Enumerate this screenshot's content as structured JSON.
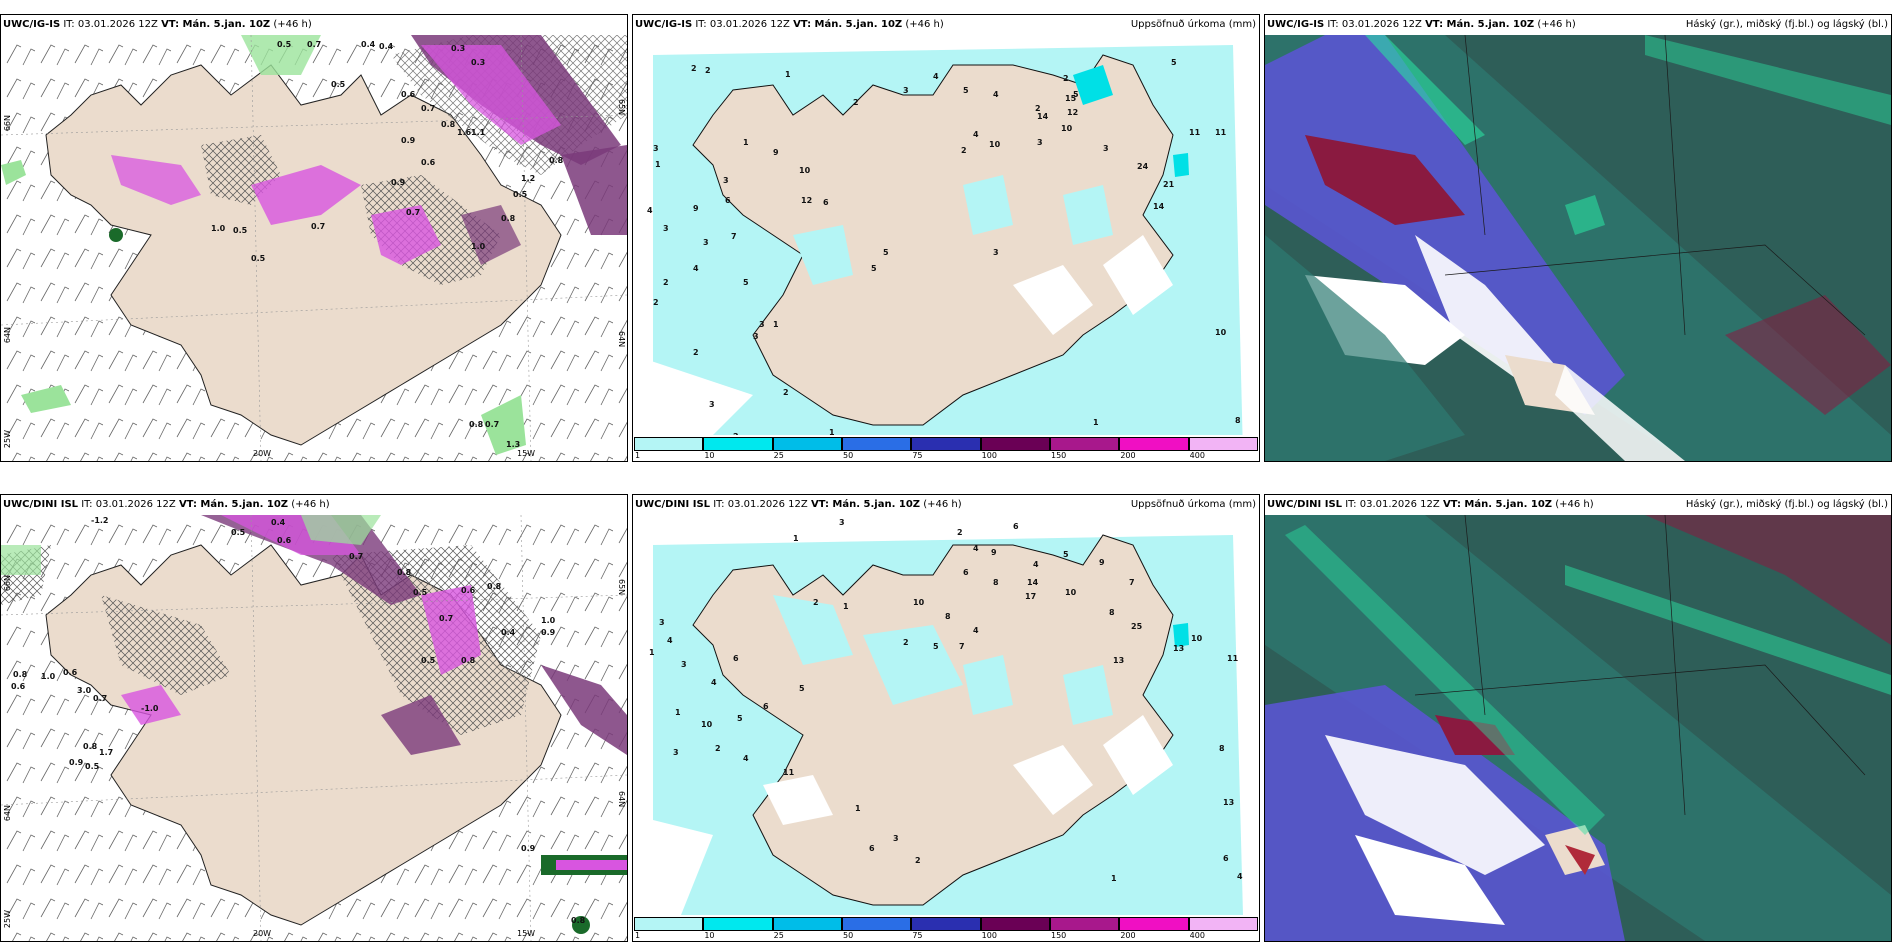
{
  "colors": {
    "land": "#ebdccd",
    "sea": "#ffffff",
    "precip_light": "#b4f5f5",
    "precip_mid": "#00e0e6",
    "magenta": "#d855e0",
    "purple": "#7a3a7a",
    "green": "#9be39b",
    "dark_teal": "#2e6e6a",
    "blue_purple": "#5a55d2",
    "crimson": "#8a1a40"
  },
  "rows": [
    {
      "model": "UWC/IG-IS",
      "it": "IT: 03.01.2026 12Z",
      "vt": "VT: Mán. 5.jan. 10Z",
      "lead": "(+46 h)",
      "panels": [
        {
          "title_right": "",
          "axes": {
            "lat_top": "66N",
            "lat_mid": "64N",
            "lat_bot": "25W",
            "lon_a": "20W",
            "lon_b": "15W",
            "right_a": "65N",
            "right_b": "64N"
          },
          "labels": [
            "0.5",
            "0.7",
            "0.4",
            "0.4",
            "0.3",
            "0.3",
            "0.5",
            "0.6",
            "0.7",
            "0.8",
            "1.1",
            "0.9",
            "1.0",
            "0.5",
            "0.6",
            "1.6",
            "0.7",
            "0.9",
            "1.2",
            "0.8",
            "0.5",
            "0.7",
            "1.0",
            "0.8",
            "0.5",
            "0.8",
            "0.7",
            "1.3"
          ]
        },
        {
          "title_right": "Uppsöfnuð úrkoma (mm)",
          "labels": [
            "2",
            "2",
            "1",
            "2",
            "4",
            "3",
            "5",
            "4",
            "2",
            "3",
            "4",
            "5",
            "3",
            "2",
            "15",
            "12",
            "10",
            "14",
            "11",
            "11",
            "5",
            "10",
            "2",
            "24",
            "21",
            "14",
            "3",
            "1",
            "9",
            "6",
            "12",
            "10",
            "9",
            "1",
            "3",
            "4",
            "3",
            "3",
            "5",
            "4",
            "2",
            "6",
            "2",
            "3",
            "2",
            "7",
            "5",
            "5",
            "2",
            "1",
            "3",
            "3",
            "2",
            "1",
            "10",
            "8",
            "1",
            "3"
          ]
        },
        {
          "title_right": "Háský (gr.), miðský (fj.bl.) og lágský (bl.)"
        }
      ],
      "colorbar_ticks": [
        "1",
        "10",
        "25",
        "50",
        "75",
        "100",
        "150",
        "200",
        "400"
      ]
    },
    {
      "model": "UWC/DINI ISL",
      "it": "IT: 03.01.2026 12Z",
      "vt": "VT: Mán. 5.jan. 10Z",
      "lead": "(+46 h)",
      "panels": [
        {
          "title_right": "",
          "axes": {
            "lat_top": "66N",
            "lat_mid": "64N",
            "lat_bot": "25W",
            "lon_a": "20W",
            "lon_b": "15W",
            "right_a": "65N",
            "right_b": "64N"
          },
          "labels": [
            "-1.2",
            "0.5",
            "0.4",
            "0.6",
            "0.7",
            "0.8",
            "0.5",
            "0.6",
            "0.8",
            "0.7",
            "0.8",
            "0.6",
            "1.0",
            "3.0",
            "0.7",
            "0.8",
            "0.9",
            "0.5",
            "1.7",
            "0.6",
            "0.9",
            "0.4",
            "0.5",
            "0.8",
            "0.9",
            "-1.0",
            "0.8",
            "1.0"
          ]
        },
        {
          "title_right": "Uppsöfnuð úrkoma (mm)",
          "labels": [
            "3",
            "1",
            "2",
            "4",
            "6",
            "9",
            "4",
            "5",
            "10",
            "6",
            "8",
            "8",
            "14",
            "17",
            "10",
            "9",
            "7",
            "8",
            "25",
            "13",
            "10",
            "11",
            "5",
            "7",
            "4",
            "13",
            "2",
            "1",
            "2",
            "3",
            "4",
            "1",
            "6",
            "3",
            "1",
            "4",
            "10",
            "5",
            "6",
            "2",
            "4",
            "3",
            "5",
            "1",
            "11",
            "8",
            "13",
            "6",
            "4",
            "2",
            "1",
            "6",
            "3"
          ]
        },
        {
          "title_right": "Háský (gr.), miðský (fj.bl.) og lágský (bl.)"
        }
      ],
      "colorbar_ticks": [
        "1",
        "10",
        "25",
        "50",
        "75",
        "100",
        "150",
        "200",
        "400"
      ]
    }
  ],
  "colorbar_colors": [
    "#b4f5f5",
    "#00e8ee",
    "#00bde8",
    "#2a6ee6",
    "#2a2fb0",
    "#6a0055",
    "#a8188c",
    "#f00fc3",
    "#f2b4f5"
  ]
}
